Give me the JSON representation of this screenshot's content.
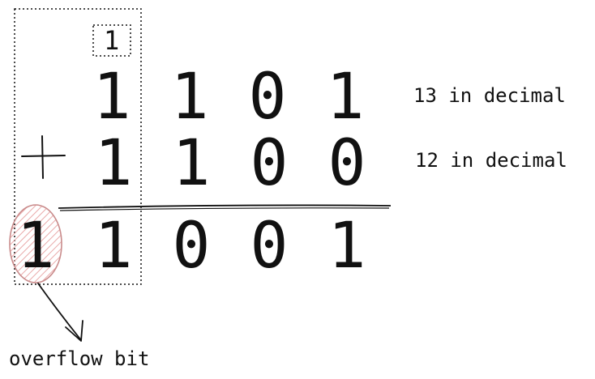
{
  "carry": {
    "digit": "1"
  },
  "addend_1": {
    "digits": [
      "1",
      "1",
      "0",
      "1"
    ],
    "annotation": "13 in decimal"
  },
  "addend_2": {
    "operator": "+",
    "digits": [
      "1",
      "1",
      "0",
      "0"
    ],
    "annotation": "12 in decimal"
  },
  "sum": {
    "overflow_digit": "1",
    "digits": [
      "1",
      "0",
      "0",
      "1"
    ]
  },
  "overflow_label": "overflow bit",
  "colors": {
    "ink": "#111111",
    "highlight_fill": "#f6d3d3",
    "highlight_stroke": "#c98b8b"
  }
}
